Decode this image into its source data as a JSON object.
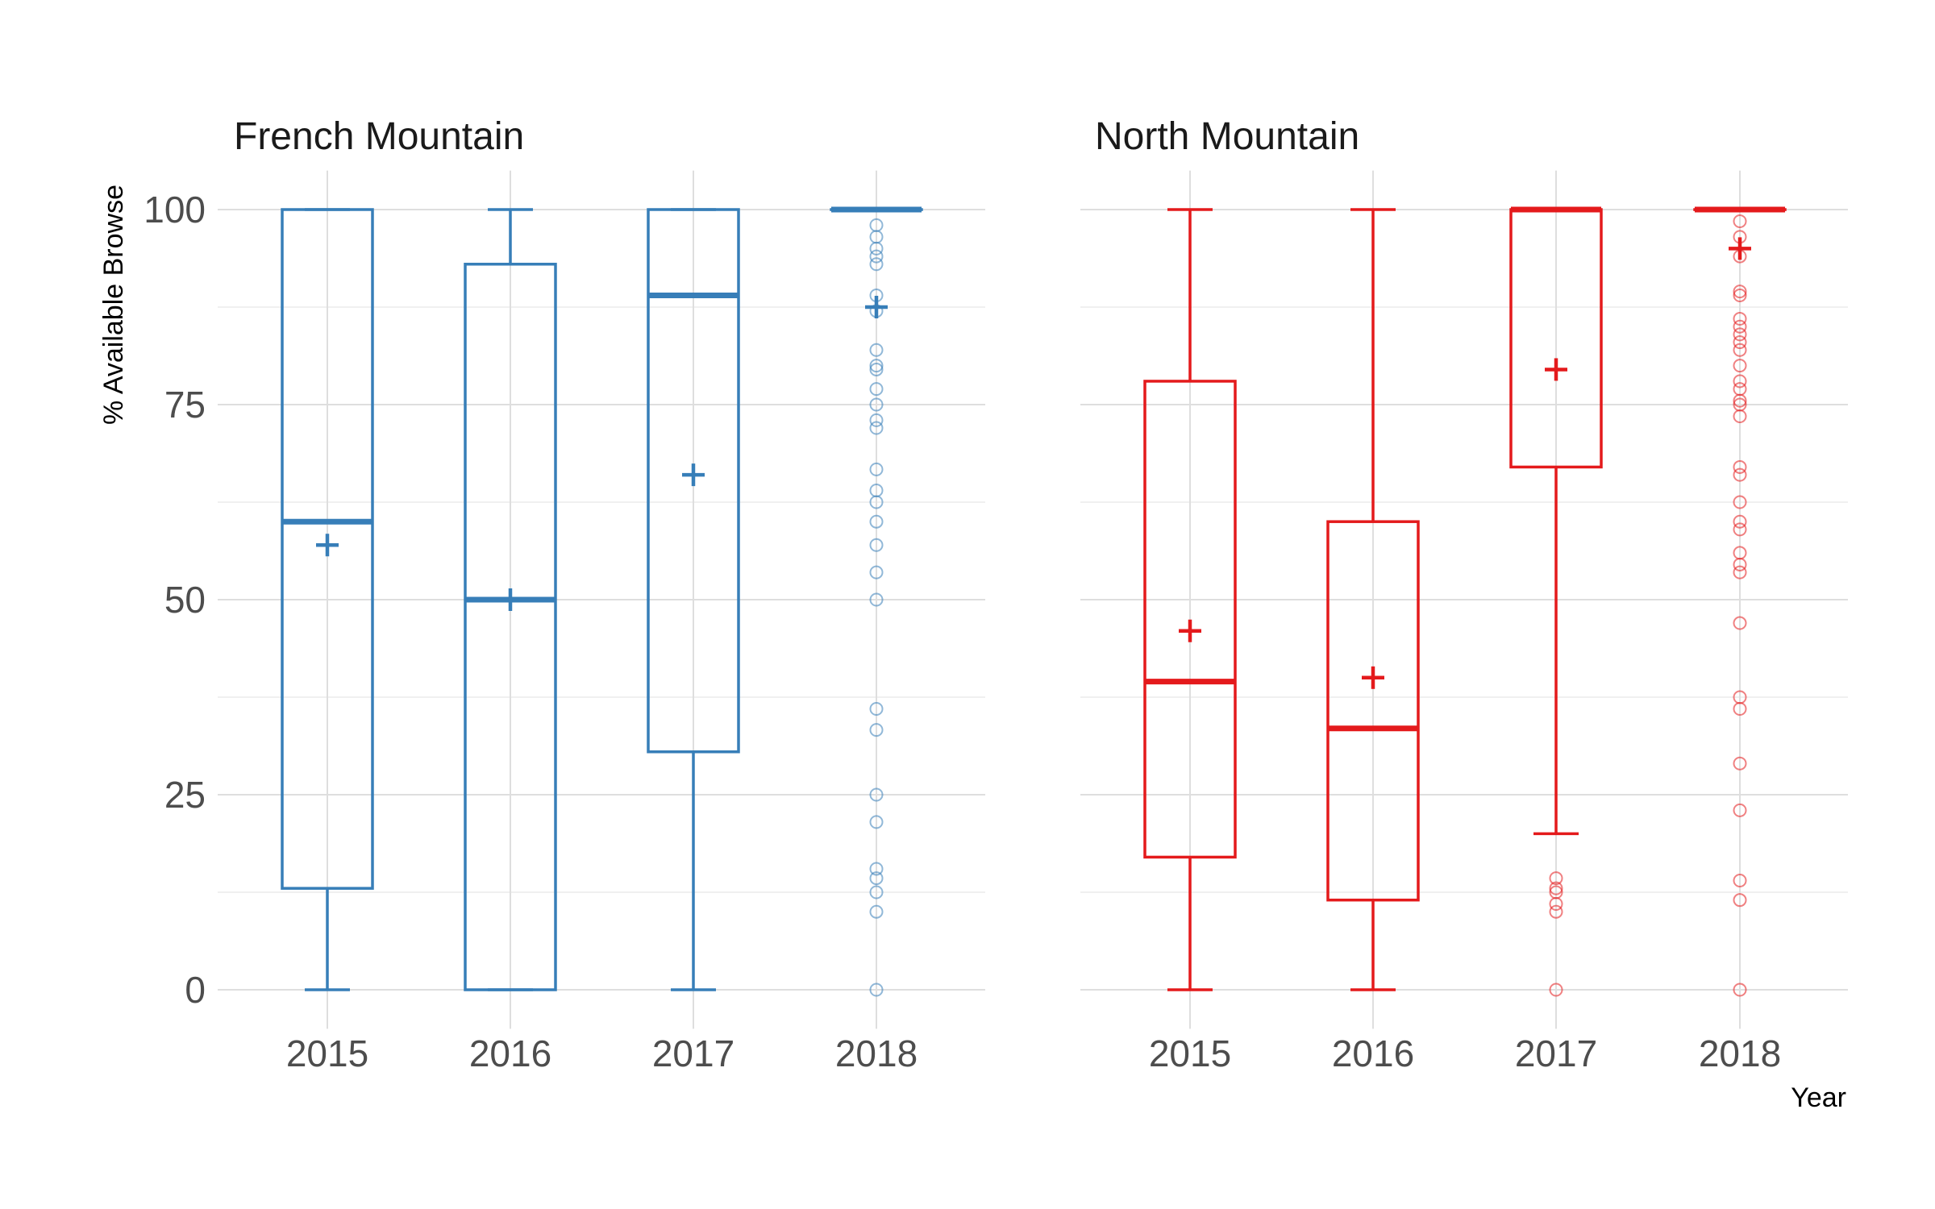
{
  "chart_data": [
    {
      "type": "box",
      "title": "French Mountain",
      "ylabel": "% Available Browse",
      "xlabel": "",
      "ylim": [
        -5,
        105
      ],
      "yticks": [
        0,
        25,
        50,
        75,
        100
      ],
      "categories": [
        "2015",
        "2016",
        "2017",
        "2018"
      ],
      "color": "#377eb8",
      "grid": true,
      "boxes": [
        {
          "x": "2015",
          "min": 0,
          "q1": 13,
          "median": 60,
          "q3": 100,
          "max": 100,
          "mean": 57,
          "outliers": []
        },
        {
          "x": "2016",
          "min": 0,
          "q1": 0,
          "median": 50,
          "q3": 93,
          "max": 100,
          "mean": 50,
          "outliers": []
        },
        {
          "x": "2017",
          "min": 0,
          "q1": 30.5,
          "median": 89,
          "q3": 100,
          "max": 100,
          "mean": 66,
          "outliers": []
        },
        {
          "x": "2018",
          "min": 100,
          "q1": 100,
          "median": 100,
          "q3": 100,
          "max": 100,
          "mean": 87.5,
          "outliers": [
            98,
            96.5,
            95,
            94,
            93,
            89,
            87,
            82,
            80,
            79.5,
            77,
            75,
            73,
            72,
            66.7,
            64,
            62.5,
            60,
            57,
            53.5,
            50,
            36,
            33.3,
            25,
            21.5,
            15.5,
            14.3,
            12.5,
            10,
            0
          ]
        }
      ]
    },
    {
      "type": "box",
      "title": "North Mountain",
      "ylabel": "",
      "xlabel": "Year",
      "ylim": [
        -5,
        105
      ],
      "yticks": [
        0,
        25,
        50,
        75,
        100
      ],
      "categories": [
        "2015",
        "2016",
        "2017",
        "2018"
      ],
      "color": "#e41a1c",
      "grid": true,
      "boxes": [
        {
          "x": "2015",
          "min": 0,
          "q1": 17,
          "median": 39.5,
          "q3": 78,
          "max": 100,
          "mean": 46,
          "outliers": []
        },
        {
          "x": "2016",
          "min": 0,
          "q1": 11.5,
          "median": 33.5,
          "q3": 60,
          "max": 100,
          "mean": 40,
          "outliers": []
        },
        {
          "x": "2017",
          "min": 20,
          "q1": 67,
          "median": 100,
          "q3": 100,
          "max": 100,
          "mean": 79.5,
          "outliers": [
            14.3,
            13,
            12.5,
            11,
            10,
            0
          ]
        },
        {
          "x": "2018",
          "min": 100,
          "q1": 100,
          "median": 100,
          "q3": 100,
          "max": 100,
          "mean": 95,
          "outliers": [
            98.5,
            96.5,
            94,
            89.5,
            89,
            86,
            85,
            84,
            83,
            82,
            80,
            78,
            77,
            75.5,
            75,
            73.5,
            67,
            66,
            62.5,
            60,
            59,
            56,
            54.5,
            53.5,
            47,
            37.5,
            36,
            29,
            23,
            14,
            11.5,
            0
          ]
        }
      ]
    }
  ]
}
